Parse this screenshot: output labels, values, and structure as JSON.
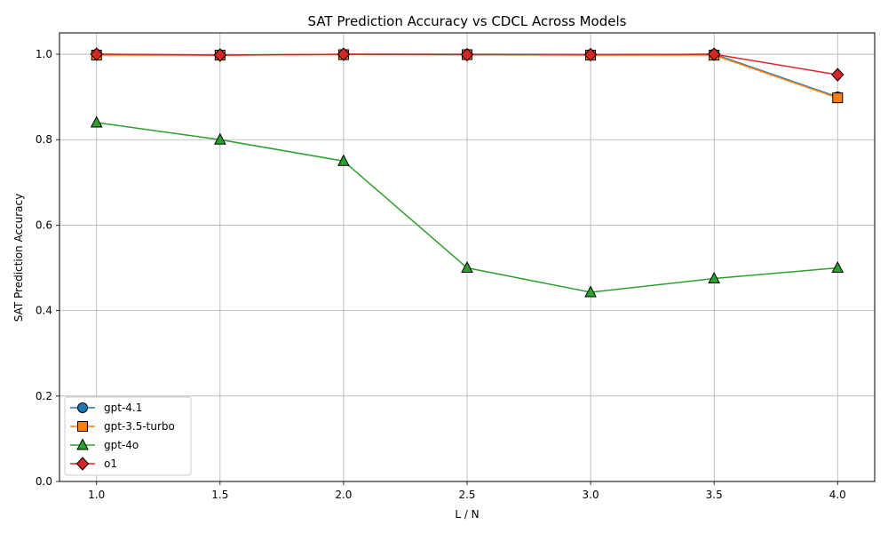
{
  "chart_data": {
    "type": "line",
    "title": "SAT Prediction Accuracy vs CDCL Across Models",
    "xlabel": "L / N",
    "ylabel": "SAT Prediction Accuracy",
    "x": [
      1.0,
      1.5,
      2.0,
      2.5,
      3.0,
      3.5,
      4.0
    ],
    "x_tick_labels": [
      "1.0",
      "1.5",
      "2.0",
      "2.5",
      "3.0",
      "3.5",
      "4.0"
    ],
    "y_ticks": [
      0.0,
      0.2,
      0.4,
      0.6,
      0.8,
      1.0
    ],
    "y_tick_labels": [
      "0.0",
      "0.2",
      "0.4",
      "0.6",
      "0.8",
      "1.0"
    ],
    "xlim": [
      0.85,
      4.15
    ],
    "ylim": [
      0.0,
      1.05
    ],
    "grid": true,
    "legend_position": "lower-left",
    "series": [
      {
        "name": "gpt-4.1",
        "color": "#1f77b4",
        "marker": "circle",
        "values": [
          1.0,
          0.998,
          1.0,
          1.0,
          0.999,
          1.0,
          0.9
        ]
      },
      {
        "name": "gpt-3.5-turbo",
        "color": "#ff7f0e",
        "marker": "square",
        "values": [
          0.998,
          0.998,
          0.999,
          0.999,
          0.998,
          0.998,
          0.898
        ]
      },
      {
        "name": "gpt-4o",
        "color": "#2ca02c",
        "marker": "triangle",
        "values": [
          0.84,
          0.8,
          0.75,
          0.5,
          0.443,
          0.475,
          0.5
        ]
      },
      {
        "name": "o1",
        "color": "#d62728",
        "marker": "diamond",
        "values": [
          1.0,
          0.998,
          1.0,
          0.999,
          0.999,
          1.0,
          0.952
        ]
      }
    ]
  }
}
